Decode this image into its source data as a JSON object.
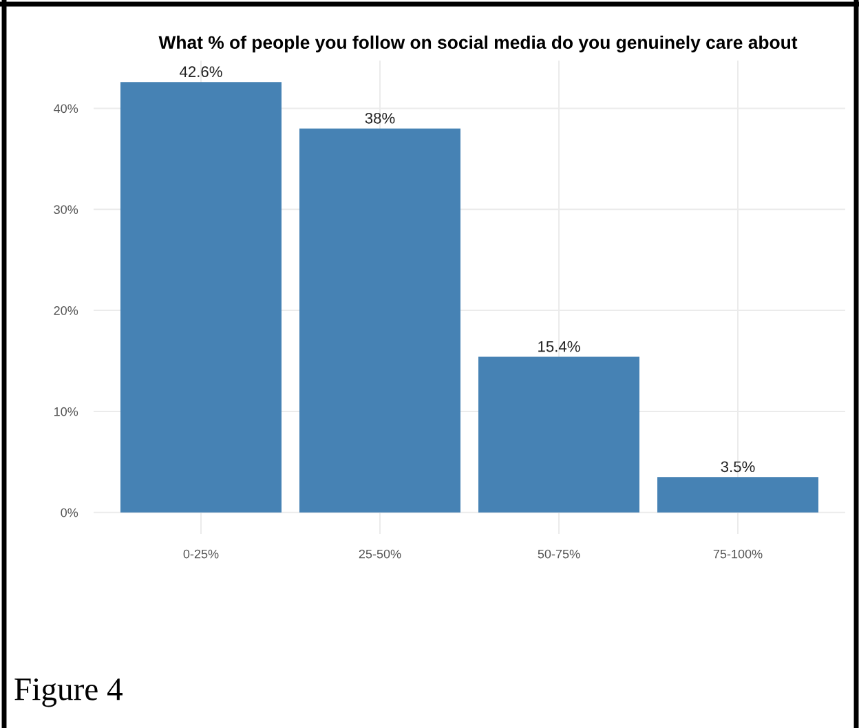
{
  "chart_data": {
    "type": "bar",
    "title": "What % of people you follow on social media do you genuinely care about",
    "categories": [
      "0-25%",
      "25-50%",
      "50-75%",
      "75-100%"
    ],
    "values": [
      42.6,
      38,
      15.4,
      3.5
    ],
    "value_labels": [
      "42.6%",
      "38%",
      "15.4%",
      "3.5%"
    ],
    "color": "#4682b4",
    "ylim": [
      -2.13,
      44.73
    ],
    "yticks": [
      {
        "value": 0,
        "label": "0%"
      },
      {
        "value": 10,
        "label": "10%"
      },
      {
        "value": 20,
        "label": "20%"
      },
      {
        "value": 30,
        "label": "30%"
      },
      {
        "value": 40,
        "label": "40%"
      }
    ],
    "grid": true,
    "annotations": [
      "Figure 4"
    ]
  }
}
